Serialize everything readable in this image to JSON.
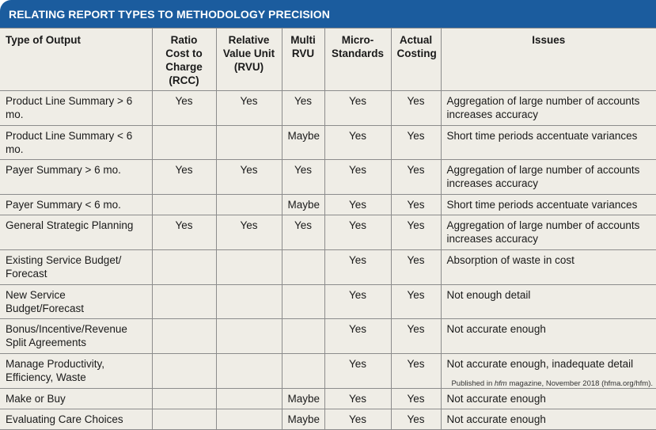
{
  "title": "RELATING REPORT TYPES TO METHODOLOGY PRECISION",
  "headers": [
    "Type of Output",
    "Ratio Cost to Charge (RCC)",
    "Relative Value Unit (RVU)",
    "Multi RVU",
    "Micro-Standards",
    "Actual Costing",
    "Issues"
  ],
  "rows": [
    [
      "Product Line Summary > 6 mo.",
      "Yes",
      "Yes",
      "Yes",
      "Yes",
      "Yes",
      "Aggregation of large number of accounts increases accuracy"
    ],
    [
      "Product Line Summary < 6 mo.",
      "",
      "",
      "Maybe",
      "Yes",
      "Yes",
      "Short time periods accentuate variances"
    ],
    [
      "Payer Summary > 6 mo.",
      "Yes",
      "Yes",
      "Yes",
      "Yes",
      "Yes",
      "Aggregation of large number of accounts increases accuracy"
    ],
    [
      "Payer Summary < 6 mo.",
      "",
      "",
      "Maybe",
      "Yes",
      "Yes",
      "Short time periods accentuate variances"
    ],
    [
      "General Strategic Planning",
      "Yes",
      "Yes",
      "Yes",
      "Yes",
      "Yes",
      "Aggregation of large number of accounts increases accuracy"
    ],
    [
      "Existing Service Budget/ Forecast",
      "",
      "",
      "",
      "Yes",
      "Yes",
      "Absorption of waste in cost"
    ],
    [
      "New Service Budget/Forecast",
      "",
      "",
      "",
      "Yes",
      "Yes",
      "Not enough detail"
    ],
    [
      "Bonus/Incentive/Revenue Split Agreements",
      "",
      "",
      "",
      "Yes",
      "Yes",
      "Not accurate enough"
    ],
    [
      "Manage Productivity, Efficiency, Waste",
      "",
      "",
      "",
      "Yes",
      "Yes",
      "Not accurate enough, inadequate detail"
    ],
    [
      "Make or Buy",
      "",
      "",
      "Maybe",
      "Yes",
      "Yes",
      "Not accurate enough"
    ],
    [
      "Evaluating Care Choices",
      "",
      "",
      "Maybe",
      "Yes",
      "Yes",
      "Not accurate enough"
    ]
  ],
  "footer": {
    "prefix": "Published in ",
    "magazine": "hfm",
    "suffix": " magazine, November 2018 (hfma.org/hfm)."
  },
  "colors": {
    "title_bar": "#1b5c9e",
    "table_bg": "#efede6",
    "border": "#8c8c8c"
  }
}
